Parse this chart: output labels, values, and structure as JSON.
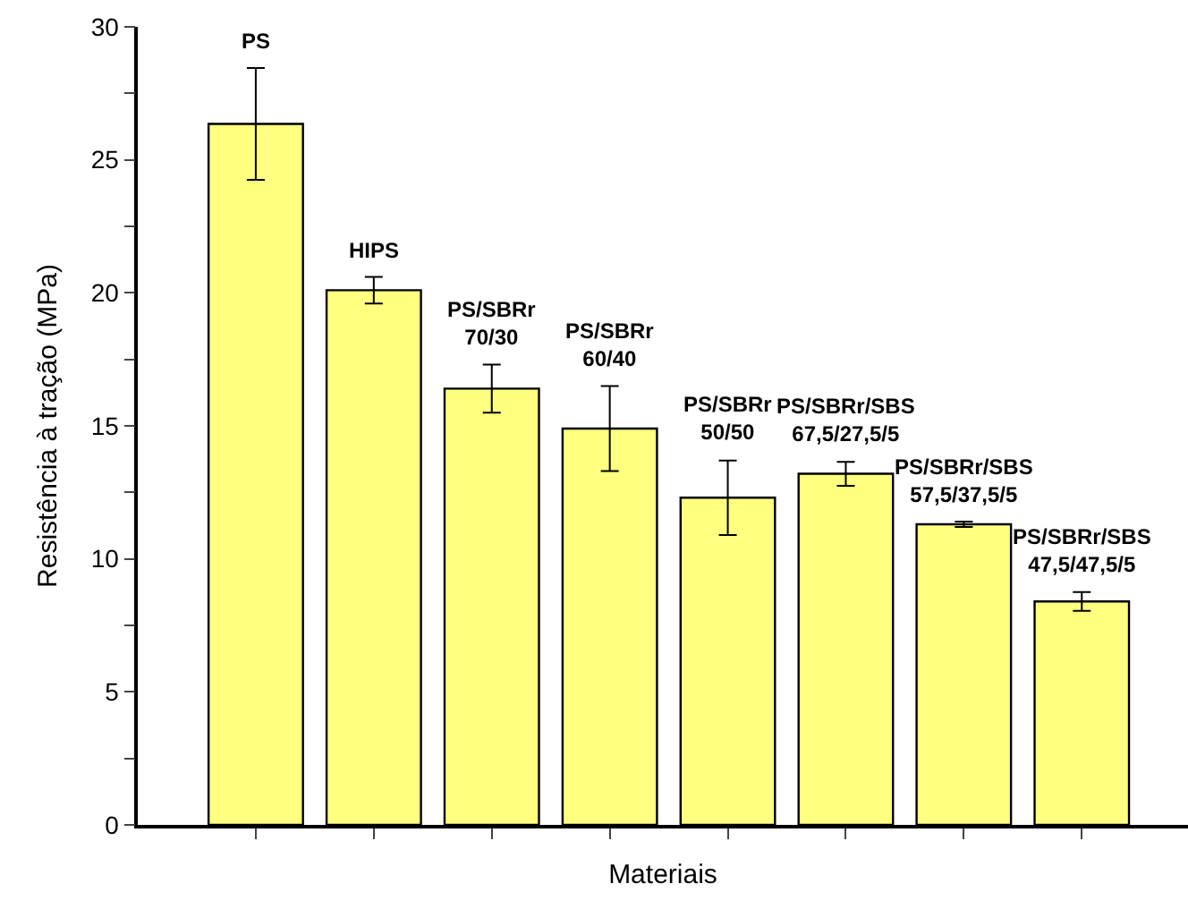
{
  "chart_data": {
    "type": "bar",
    "xlabel": "Materiais",
    "ylabel": "Resistência à tração (MPa)",
    "categories": [
      "PS",
      "HIPS",
      "PS/SBRr\n70/30",
      "PS/SBRr\n60/40",
      "PS/SBRr\n50/50",
      "PS/SBRr/SBS\n67,5/27,5/5",
      "PS/SBRr/SBS\n57,5/37,5/5",
      "PS/SBRr/SBS\n47,5/47,5/5"
    ],
    "values": [
      26.35,
      20.1,
      16.4,
      14.9,
      12.3,
      13.2,
      11.3,
      8.4
    ],
    "errors": [
      2.1,
      0.5,
      0.9,
      1.6,
      1.4,
      0.45,
      0.1,
      0.35
    ],
    "color": "#ffff80",
    "ylim": [
      0,
      30
    ],
    "yticks": [
      0,
      {
        "value": 2.5,
        "label": null
      },
      5,
      {
        "value": 7.5,
        "label": null
      },
      10,
      {
        "value": 12.5,
        "label": null
      },
      15,
      {
        "value": 17.5,
        "label": null
      },
      20,
      {
        "value": 22.5,
        "label": null
      },
      25,
      {
        "value": 27.5,
        "label": null
      },
      30
    ],
    "tick_labels": "y",
    "legend": false
  }
}
